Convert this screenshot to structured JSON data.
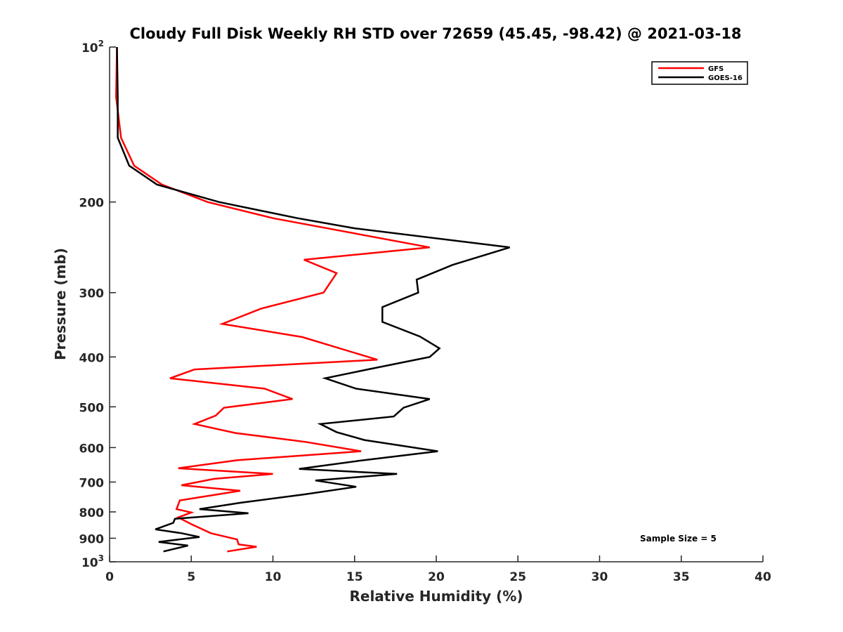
{
  "chart_data": {
    "type": "line",
    "title": "Cloudy Full Disk Weekly RH STD over 72659 (45.45, -98.42) @ 2021-03-18",
    "xlabel": "Relative Humidity (%)",
    "ylabel": "Pressure (mb)",
    "xlim": [
      0,
      40
    ],
    "ylim": [
      100,
      1000
    ],
    "yscale": "log",
    "y_reversed": true,
    "x_ticks": [
      "0",
      "5",
      "10",
      "15",
      "20",
      "25",
      "30",
      "35",
      "40"
    ],
    "y_ticks": [
      {
        "value": 100,
        "label": "10",
        "sup": "2"
      },
      {
        "value": 200,
        "label": "200",
        "sup": ""
      },
      {
        "value": 300,
        "label": "300",
        "sup": ""
      },
      {
        "value": 400,
        "label": "400",
        "sup": ""
      },
      {
        "value": 500,
        "label": "500",
        "sup": ""
      },
      {
        "value": 600,
        "label": "600",
        "sup": ""
      },
      {
        "value": 700,
        "label": "700",
        "sup": ""
      },
      {
        "value": 800,
        "label": "800",
        "sup": ""
      },
      {
        "value": 900,
        "label": "900",
        "sup": ""
      },
      {
        "value": 1000,
        "label": "10",
        "sup": "3"
      }
    ],
    "legend_position": "top-right",
    "annotation": "Sample Size = 5",
    "series": [
      {
        "name": "GFS",
        "color": "#ff0000",
        "points": [
          [
            0.45,
            100
          ],
          [
            0.4,
            125
          ],
          [
            0.7,
            150
          ],
          [
            1.5,
            170
          ],
          [
            3.2,
            185
          ],
          [
            6.0,
            200
          ],
          [
            10.0,
            215
          ],
          [
            19.6,
            245
          ],
          [
            11.9,
            259
          ],
          [
            13.9,
            275
          ],
          [
            13.1,
            300
          ],
          [
            9.3,
            322
          ],
          [
            6.9,
            345
          ],
          [
            11.8,
            366
          ],
          [
            16.4,
            405
          ],
          [
            5.2,
            423
          ],
          [
            3.7,
            440
          ],
          [
            9.5,
            461
          ],
          [
            11.2,
            483
          ],
          [
            7.0,
            502
          ],
          [
            6.5,
            520
          ],
          [
            5.2,
            540
          ],
          [
            7.7,
            562
          ],
          [
            12.0,
            585
          ],
          [
            15.4,
            610
          ],
          [
            7.8,
            635
          ],
          [
            4.2,
            658
          ],
          [
            10.0,
            675
          ],
          [
            6.4,
            690
          ],
          [
            4.4,
            710
          ],
          [
            8.0,
            728
          ],
          [
            4.3,
            760
          ],
          [
            4.1,
            790
          ],
          [
            5.0,
            802
          ],
          [
            4.2,
            820
          ],
          [
            5.0,
            845
          ],
          [
            6.2,
            880
          ],
          [
            7.8,
            905
          ],
          [
            7.9,
            925
          ],
          [
            9.0,
            935
          ],
          [
            7.2,
            955
          ]
        ]
      },
      {
        "name": "GOES-16",
        "color": "#000000",
        "points": [
          [
            0.45,
            100
          ],
          [
            0.5,
            125
          ],
          [
            0.5,
            150
          ],
          [
            1.2,
            170
          ],
          [
            2.9,
            185
          ],
          [
            6.7,
            200
          ],
          [
            11.5,
            215
          ],
          [
            15.0,
            225
          ],
          [
            24.5,
            245
          ],
          [
            21.0,
            265
          ],
          [
            18.8,
            283
          ],
          [
            18.9,
            300
          ],
          [
            16.7,
            320
          ],
          [
            16.7,
            342
          ],
          [
            19.0,
            365
          ],
          [
            20.2,
            385
          ],
          [
            19.6,
            400
          ],
          [
            15.8,
            423
          ],
          [
            13.2,
            440
          ],
          [
            15.1,
            461
          ],
          [
            19.6,
            483
          ],
          [
            18.0,
            502
          ],
          [
            17.4,
            522
          ],
          [
            12.9,
            540
          ],
          [
            13.9,
            560
          ],
          [
            15.6,
            580
          ],
          [
            20.1,
            610
          ],
          [
            15.2,
            637
          ],
          [
            11.6,
            660
          ],
          [
            17.6,
            675
          ],
          [
            12.6,
            695
          ],
          [
            15.1,
            715
          ],
          [
            11.9,
            740
          ],
          [
            8.0,
            768
          ],
          [
            5.5,
            790
          ],
          [
            8.5,
            805
          ],
          [
            4.0,
            825
          ],
          [
            3.9,
            840
          ],
          [
            2.8,
            865
          ],
          [
            4.4,
            880
          ],
          [
            5.5,
            895
          ],
          [
            3.0,
            915
          ],
          [
            4.8,
            930
          ],
          [
            3.3,
            955
          ]
        ]
      }
    ]
  }
}
